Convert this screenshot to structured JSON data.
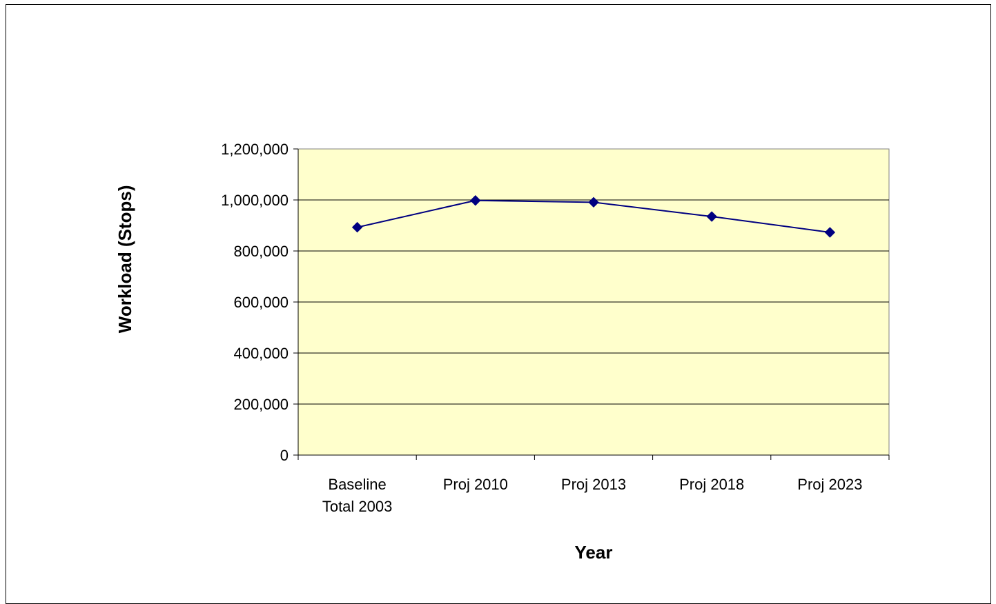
{
  "chart_data": {
    "type": "line",
    "title": "",
    "xlabel": "Year",
    "ylabel": "Workload (Stops)",
    "categories": [
      [
        "Baseline",
        "Total 2003"
      ],
      [
        "Proj 2010"
      ],
      [
        "Proj 2013"
      ],
      [
        "Proj 2018"
      ],
      [
        "Proj 2023"
      ]
    ],
    "series": [
      {
        "values": [
          893000,
          998000,
          991000,
          935000,
          873000
        ],
        "color": "#000080",
        "marker": "diamond"
      }
    ],
    "ylim": [
      0,
      1200000
    ],
    "yticks": [
      0,
      200000,
      400000,
      600000,
      800000,
      1000000,
      1200000
    ],
    "ytick_labels": [
      "0",
      "200,000",
      "400,000",
      "600,000",
      "800,000",
      "1,000,000",
      "1,200,000"
    ],
    "grid": true,
    "legend": "none",
    "plot_background": "#FFFFCC"
  }
}
